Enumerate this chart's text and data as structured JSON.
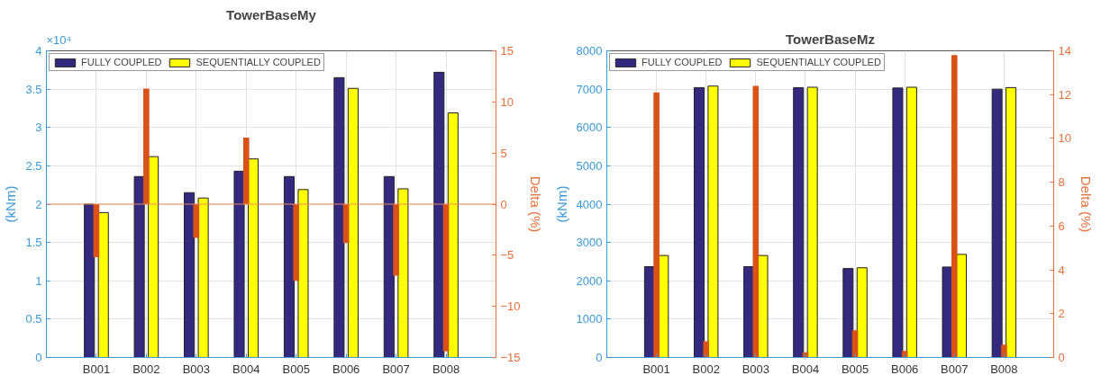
{
  "chart_data": [
    {
      "type": "bar",
      "title": "TowerBaseMy",
      "ylabel": "(kNm)",
      "y2label": "Delta (%)",
      "categories": [
        "B001",
        "B002",
        "B003",
        "B004",
        "B005",
        "B006",
        "B007",
        "B008"
      ],
      "series": [
        {
          "name": "FULLY COUPLED",
          "color": "#332a80",
          "values": [
            2.0,
            2.36,
            2.15,
            2.43,
            2.36,
            3.65,
            2.36,
            3.72
          ]
        },
        {
          "name": "SEQUENTIALLY COUPLED",
          "color": "#ffff00",
          "values": [
            1.89,
            2.62,
            2.08,
            2.59,
            2.19,
            3.51,
            2.2,
            3.19
          ]
        },
        {
          "color": "#d95319",
          "axis": "y2",
          "values": [
            -5.2,
            11.3,
            -3.3,
            6.5,
            -7.5,
            -3.8,
            -7.0,
            -14.4
          ]
        }
      ],
      "ylim": [
        0,
        4
      ],
      "yticks": [
        0,
        0.5,
        1,
        1.5,
        2,
        2.5,
        3,
        3.5,
        4
      ],
      "y2lim": [
        -15,
        15
      ],
      "y2ticks": [
        -15,
        -10,
        -5,
        0,
        5,
        10,
        15
      ],
      "ref_lines": [
        {
          "axis": "y2",
          "value": 0,
          "label": null,
          "color": "#f08a5d"
        }
      ],
      "annotations": [
        "×10⁴"
      ],
      "grid": true,
      "legend": "top left"
    },
    {
      "type": "bar",
      "title": "TowerBaseMz",
      "ylabel": "(kNm)",
      "y2label": "Delta (%)",
      "categories": [
        "B001",
        "B002",
        "B003",
        "B004",
        "B005",
        "B006",
        "B007",
        "B008"
      ],
      "series": [
        {
          "name": "FULLY COUPLED",
          "color": "#332a80",
          "values": [
            2370,
            7040,
            2370,
            7040,
            2320,
            7030,
            2360,
            7000
          ]
        },
        {
          "name": "SEQUENTIALLY COUPLED",
          "color": "#ffff00",
          "values": [
            2660,
            7080,
            2660,
            7050,
            2340,
            7050,
            2690,
            7040
          ]
        },
        {
          "color": "#d95319",
          "axis": "y2",
          "values": [
            12.1,
            0.74,
            12.4,
            0.24,
            1.24,
            0.3,
            13.8,
            0.59
          ]
        }
      ],
      "ylim": [
        0,
        8000
      ],
      "yticks": [
        0,
        1000,
        2000,
        3000,
        4000,
        5000,
        6000,
        7000,
        8000
      ],
      "y2lim": [
        0,
        14
      ],
      "y2ticks": [
        0,
        2,
        4,
        6,
        8,
        10,
        12,
        14
      ],
      "grid": true,
      "legend": "top left"
    }
  ]
}
